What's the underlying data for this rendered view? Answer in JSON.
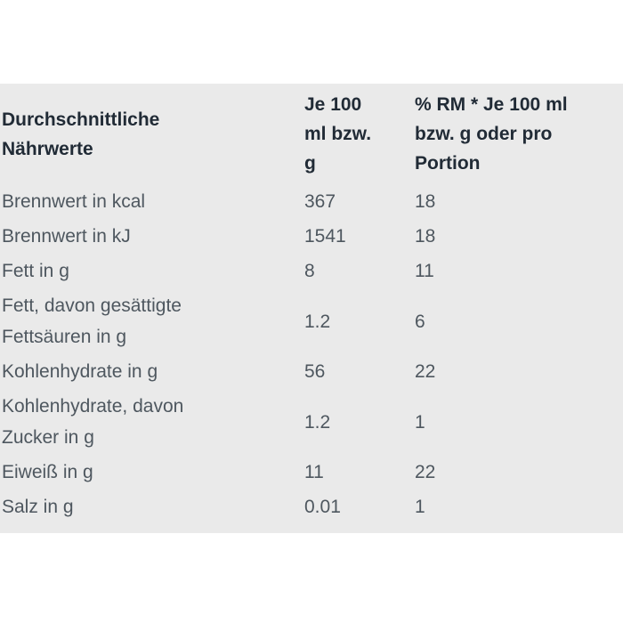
{
  "page": {
    "background": "#ffffff"
  },
  "nutrition_table": {
    "background": "#eaeaea",
    "header_text_color": "#212b36",
    "body_text_color": "#4e575f",
    "columns": [
      {
        "label": "Durchschnittliche Nährwerte",
        "lines": [
          "Durchschnittliche",
          "Nährwerte"
        ]
      },
      {
        "label": "Je 100 ml bzw. g",
        "lines": [
          "Je 100",
          "ml bzw.",
          "g"
        ]
      },
      {
        "label": "% RM * Je 100 ml bzw. g oder pro Portion",
        "lines": [
          "% RM * Je 100 ml",
          "bzw. g oder pro",
          "Portion"
        ]
      }
    ],
    "rows": [
      {
        "label": "Brennwert in kcal",
        "label_lines": [
          "Brennwert in kcal"
        ],
        "per_100": "367",
        "rm_percent": "18"
      },
      {
        "label": "Brennwert in kJ",
        "label_lines": [
          "Brennwert in kJ"
        ],
        "per_100": "1541",
        "rm_percent": "18"
      },
      {
        "label": "Fett in g",
        "label_lines": [
          "Fett in g"
        ],
        "per_100": "8",
        "rm_percent": "11"
      },
      {
        "label": "Fett, davon gesättigte Fettsäuren in g",
        "label_lines": [
          "Fett, davon gesättigte",
          "Fettsäuren in g"
        ],
        "per_100": "1.2",
        "rm_percent": "6"
      },
      {
        "label": "Kohlenhydrate in g",
        "label_lines": [
          "Kohlenhydrate in g"
        ],
        "per_100": "56",
        "rm_percent": "22"
      },
      {
        "label": "Kohlenhydrate, davon Zucker in g",
        "label_lines": [
          "Kohlenhydrate, davon",
          "Zucker in g"
        ],
        "per_100": "1.2",
        "rm_percent": "1"
      },
      {
        "label": "Eiweiß in g",
        "label_lines": [
          "Eiweiß in g"
        ],
        "per_100": "11",
        "rm_percent": "22"
      },
      {
        "label": "Salz in g",
        "label_lines": [
          "Salz in g"
        ],
        "per_100": "0.01",
        "rm_percent": "1"
      }
    ]
  }
}
